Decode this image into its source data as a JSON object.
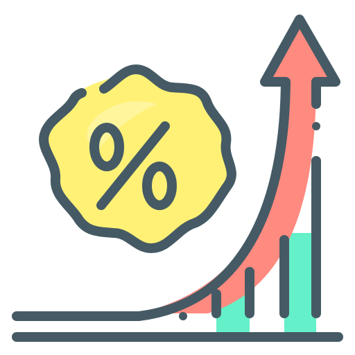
{
  "icon": {
    "name": "interest-rate-growth-icon",
    "badge_symbol": "%",
    "colors": {
      "outline": "#455A64",
      "badge_fill": "#FFF176",
      "badge_highlight": "#FFF59D",
      "arrow_fill": "#FF8A80",
      "bar_fill": "#64F0C8",
      "background": "#FFFFFF"
    }
  }
}
